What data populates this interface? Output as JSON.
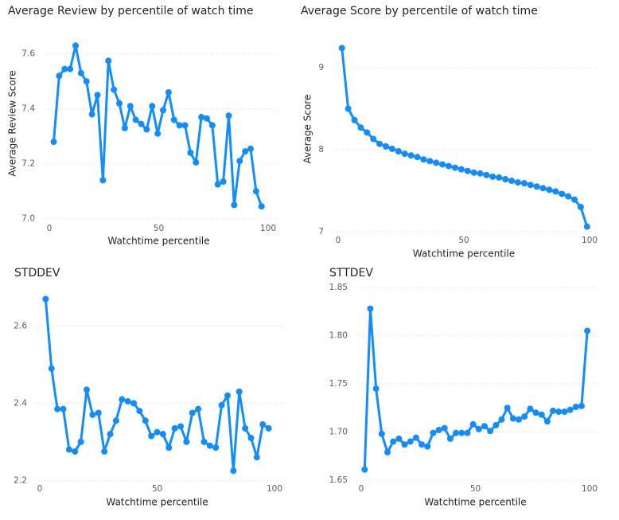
{
  "chart_data": [
    {
      "type": "line",
      "title": "Average Review by percentile of watch time",
      "x_label": "Watchtime percentile",
      "y_label": "Average Review Score",
      "color": "#118DFF",
      "grid": true,
      "markers": true,
      "x": [
        2,
        4.5,
        7,
        9.5,
        12,
        14.5,
        17,
        19.5,
        22,
        24.5,
        27,
        29.5,
        32,
        34.5,
        37,
        39.5,
        42,
        44.5,
        47,
        49.5,
        52,
        54.5,
        57,
        59.5,
        62,
        64.5,
        67,
        69.5,
        72,
        74.5,
        77,
        79.5,
        82,
        84.5,
        87,
        89.5,
        92,
        94.5,
        97
      ],
      "values": [
        7.28,
        7.52,
        7.545,
        7.545,
        7.63,
        7.53,
        7.5,
        7.38,
        7.45,
        7.14,
        7.575,
        7.47,
        7.42,
        7.33,
        7.41,
        7.36,
        7.345,
        7.325,
        7.41,
        7.31,
        7.395,
        7.46,
        7.36,
        7.34,
        7.34,
        7.24,
        7.205,
        7.37,
        7.365,
        7.34,
        7.125,
        7.135,
        7.375,
        7.05,
        7.21,
        7.245,
        7.255,
        7.1,
        7.045
      ],
      "xlim": [
        0,
        100
      ],
      "xticks": [
        0,
        50,
        100
      ],
      "ylim": [
        6.97,
        7.66
      ],
      "yticks": [
        {
          "value": 7,
          "label": "7.0"
        },
        7.2,
        7.4,
        7.6
      ]
    },
    {
      "type": "line",
      "title": "Average Score by percentile of watch time",
      "x_label": "Watchtime percentile",
      "y_label": "Average Score",
      "color": "#118DFF",
      "grid": true,
      "markers": true,
      "x": [
        1.5,
        4,
        6.5,
        9,
        11.5,
        14,
        16.5,
        19,
        21.5,
        24,
        26.5,
        29,
        31.5,
        34,
        36.5,
        39,
        41.5,
        44,
        46.5,
        49,
        51.5,
        54,
        56.5,
        59,
        61.5,
        64,
        66.5,
        69,
        71.5,
        74,
        76.5,
        79,
        81.5,
        84,
        86.5,
        89,
        91.5,
        94,
        96.5,
        99
      ],
      "values": [
        9.24,
        8.5,
        8.36,
        8.27,
        8.21,
        8.13,
        8.07,
        8.04,
        8.01,
        7.98,
        7.95,
        7.93,
        7.91,
        7.88,
        7.86,
        7.84,
        7.82,
        7.8,
        7.78,
        7.76,
        7.74,
        7.72,
        7.71,
        7.69,
        7.67,
        7.66,
        7.64,
        7.62,
        7.6,
        7.59,
        7.57,
        7.55,
        7.53,
        7.51,
        7.49,
        7.46,
        7.43,
        7.39,
        7.3,
        7.06
      ],
      "xlim": [
        0,
        100
      ],
      "xticks": [
        0,
        50,
        100
      ],
      "ylim": [
        6.95,
        9.35
      ],
      "yticks": [
        7,
        8,
        9
      ]
    },
    {
      "type": "line",
      "title": "STDDEV",
      "x_label": "Watchtime percentile",
      "color": "#118DFF",
      "grid": true,
      "markers": true,
      "x": [
        2.5,
        5,
        7.5,
        10,
        12.5,
        15,
        17.5,
        20,
        22.5,
        25,
        27.5,
        30,
        32.5,
        35,
        37.5,
        40,
        42.5,
        45,
        47.5,
        50,
        52.5,
        55,
        57.5,
        60,
        62.5,
        65,
        67.5,
        70,
        72.5,
        75,
        77.5,
        80,
        82.5,
        85,
        87.5,
        90,
        92.5,
        95,
        97.5
      ],
      "values": [
        2.67,
        2.49,
        2.385,
        2.385,
        2.28,
        2.275,
        2.3,
        2.435,
        2.37,
        2.375,
        2.275,
        2.32,
        2.355,
        2.41,
        2.405,
        2.4,
        2.38,
        2.355,
        2.315,
        2.325,
        2.32,
        2.285,
        2.335,
        2.34,
        2.3,
        2.375,
        2.385,
        2.3,
        2.29,
        2.285,
        2.395,
        2.42,
        2.225,
        2.43,
        2.335,
        2.31,
        2.26,
        2.345,
        2.335
      ],
      "xlim": [
        0,
        100
      ],
      "xticks": [
        0,
        50,
        100
      ],
      "ylim": [
        2.18,
        2.7
      ],
      "yticks": [
        2.2,
        2.4,
        2.6
      ]
    },
    {
      "type": "line",
      "title": "STTDEV",
      "x_label": "Watchtime percentile",
      "color": "#118DFF",
      "grid": true,
      "markers": true,
      "x": [
        1.5,
        4,
        6.5,
        9,
        11.5,
        14,
        16.5,
        19,
        21.5,
        24,
        26.5,
        29,
        31.5,
        34,
        36.5,
        39,
        41.5,
        44,
        46.5,
        49,
        51.5,
        54,
        56.5,
        59,
        61.5,
        64,
        66.5,
        69,
        71.5,
        74,
        76.5,
        79,
        81.5,
        84,
        86.5,
        89,
        91.5,
        94,
        96.5,
        99
      ],
      "values": [
        1.661,
        1.828,
        1.745,
        1.698,
        1.679,
        1.69,
        1.693,
        1.687,
        1.69,
        1.694,
        1.687,
        1.685,
        1.699,
        1.702,
        1.704,
        1.693,
        1.699,
        1.699,
        1.699,
        1.708,
        1.703,
        1.706,
        1.701,
        1.707,
        1.713,
        1.725,
        1.714,
        1.713,
        1.716,
        1.724,
        1.72,
        1.718,
        1.711,
        1.722,
        1.721,
        1.721,
        1.723,
        1.726,
        1.727,
        1.805
      ],
      "xlim": [
        0,
        100
      ],
      "xticks": [
        0,
        50,
        100
      ],
      "ylim": [
        1.645,
        1.85
      ],
      "yticks": [
        1.65,
        {
          "value": 1.7,
          "label": "1.70"
        },
        1.75,
        {
          "value": 1.8,
          "label": "1.80"
        },
        1.85
      ]
    }
  ]
}
